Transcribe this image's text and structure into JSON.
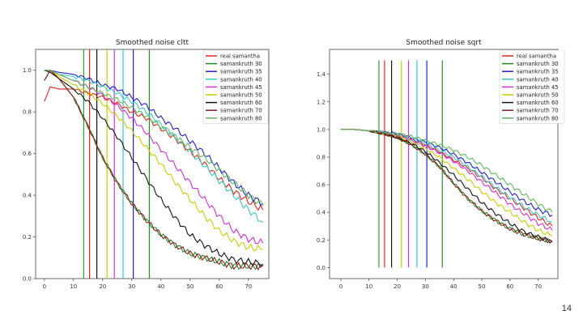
{
  "slide": {
    "page_number": "14"
  },
  "chart_data": [
    {
      "type": "line",
      "title": "Smoothed noise cltt",
      "xlabel": "",
      "ylabel": "",
      "xlim": [
        -3,
        77
      ],
      "ylim": [
        0,
        1.1
      ],
      "xticks": [
        0,
        10,
        20,
        30,
        40,
        50,
        60,
        70
      ],
      "yticks": [
        0.0,
        0.2,
        0.4,
        0.6,
        0.8,
        1.0
      ],
      "grid": false,
      "legend_position": "top-right",
      "vlines": [
        {
          "x": 13.5,
          "color": "#2ca02c"
        },
        {
          "x": 15.5,
          "color": "#e6261f"
        },
        {
          "x": 18.0,
          "color": "#111111"
        },
        {
          "x": 21.5,
          "color": "#cccc00"
        },
        {
          "x": 24.0,
          "color": "#d62fd6"
        },
        {
          "x": 27.0,
          "color": "#35c9cf"
        },
        {
          "x": 30.5,
          "color": "#2020d0"
        },
        {
          "x": 36.0,
          "color": "#1e9a1e"
        }
      ],
      "series": [
        {
          "name": "real samantha",
          "color": "#e6261f",
          "x": [
            0,
            2,
            5,
            10,
            15,
            20,
            25,
            30,
            35,
            40,
            45,
            50,
            55,
            60,
            65,
            70,
            75
          ],
          "y": [
            0.85,
            0.92,
            0.91,
            0.91,
            0.89,
            0.87,
            0.84,
            0.8,
            0.77,
            0.72,
            0.67,
            0.61,
            0.55,
            0.48,
            0.42,
            0.37,
            0.33
          ]
        },
        {
          "name": "samankruth 30",
          "color": "#1e8a1e",
          "x": [
            0,
            2,
            5,
            10,
            15,
            20,
            25,
            30,
            35,
            40,
            45,
            50,
            55,
            60,
            65,
            70,
            75
          ],
          "y": [
            0.95,
            1.0,
            0.96,
            0.87,
            0.73,
            0.58,
            0.46,
            0.36,
            0.28,
            0.21,
            0.16,
            0.12,
            0.1,
            0.08,
            0.06,
            0.06,
            0.06
          ]
        },
        {
          "name": "samankruth 35",
          "color": "#2020d0",
          "x": [
            0,
            2,
            5,
            10,
            15,
            20,
            25,
            30,
            35,
            40,
            45,
            50,
            55,
            60,
            65,
            70,
            75
          ],
          "y": [
            1.0,
            1.0,
            0.99,
            0.98,
            0.96,
            0.93,
            0.91,
            0.87,
            0.83,
            0.77,
            0.72,
            0.66,
            0.6,
            0.53,
            0.46,
            0.4,
            0.36
          ]
        },
        {
          "name": "samankruth 40",
          "color": "#35c9cf",
          "x": [
            0,
            2,
            5,
            10,
            15,
            20,
            25,
            30,
            35,
            40,
            45,
            50,
            55,
            60,
            65,
            70,
            75
          ],
          "y": [
            1.0,
            1.0,
            0.98,
            0.97,
            0.95,
            0.92,
            0.89,
            0.85,
            0.8,
            0.74,
            0.68,
            0.61,
            0.54,
            0.47,
            0.4,
            0.33,
            0.27
          ]
        },
        {
          "name": "samankruth 45",
          "color": "#d62fd6",
          "x": [
            0,
            2,
            5,
            10,
            15,
            20,
            25,
            30,
            35,
            40,
            45,
            50,
            55,
            60,
            65,
            70,
            75
          ],
          "y": [
            1.0,
            1.0,
            0.98,
            0.95,
            0.92,
            0.88,
            0.83,
            0.77,
            0.7,
            0.62,
            0.54,
            0.46,
            0.38,
            0.3,
            0.23,
            0.19,
            0.17
          ]
        },
        {
          "name": "samankruth 50",
          "color": "#cccc00",
          "x": [
            0,
            2,
            5,
            10,
            15,
            20,
            25,
            30,
            35,
            40,
            45,
            50,
            55,
            60,
            65,
            70,
            75
          ],
          "y": [
            1.0,
            1.0,
            0.97,
            0.93,
            0.89,
            0.84,
            0.78,
            0.71,
            0.63,
            0.55,
            0.46,
            0.38,
            0.3,
            0.23,
            0.18,
            0.15,
            0.14
          ]
        },
        {
          "name": "samankruth 60",
          "color": "#111111",
          "x": [
            0,
            2,
            5,
            10,
            15,
            20,
            25,
            30,
            35,
            40,
            45,
            50,
            55,
            60,
            65,
            70,
            75
          ],
          "y": [
            1.0,
            0.99,
            0.96,
            0.91,
            0.85,
            0.77,
            0.68,
            0.58,
            0.48,
            0.38,
            0.29,
            0.21,
            0.16,
            0.12,
            0.09,
            0.08,
            0.07
          ]
        },
        {
          "name": "samankruth 70",
          "color": "#8b1a1a",
          "x": [
            0,
            2,
            5,
            10,
            15,
            20,
            25,
            30,
            35,
            40,
            45,
            50,
            55,
            60,
            65,
            70,
            75
          ],
          "y": [
            0.95,
            1.0,
            0.96,
            0.87,
            0.73,
            0.58,
            0.46,
            0.36,
            0.28,
            0.21,
            0.16,
            0.12,
            0.1,
            0.08,
            0.06,
            0.06,
            0.06
          ]
        },
        {
          "name": "samankruth 80",
          "color": "#5fb85f",
          "x": [
            0,
            2,
            5,
            10,
            15,
            20,
            25,
            30,
            35,
            40,
            45,
            50,
            55,
            60,
            65,
            70,
            75
          ],
          "y": [
            1.0,
            1.0,
            0.98,
            0.95,
            0.92,
            0.89,
            0.86,
            0.82,
            0.78,
            0.73,
            0.68,
            0.63,
            0.58,
            0.52,
            0.46,
            0.4,
            0.35
          ]
        }
      ]
    },
    {
      "type": "line",
      "title": "Smoothed noise sqrt",
      "xlabel": "",
      "ylabel": "",
      "xlim": [
        -4,
        77
      ],
      "ylim": [
        -0.08,
        1.58
      ],
      "xticks": [
        0,
        10,
        20,
        30,
        40,
        50,
        60,
        70
      ],
      "yticks": [
        0.0,
        0.2,
        0.4,
        0.6,
        0.8,
        1.0,
        1.2,
        1.4
      ],
      "grid": false,
      "legend_position": "top-right",
      "vlines": [
        {
          "x": 13.5,
          "color": "#2ca02c"
        },
        {
          "x": 15.5,
          "color": "#e6261f"
        },
        {
          "x": 18.0,
          "color": "#111111"
        },
        {
          "x": 21.5,
          "color": "#cccc00"
        },
        {
          "x": 24.0,
          "color": "#d62fd6"
        },
        {
          "x": 27.0,
          "color": "#35c9cf"
        },
        {
          "x": 30.5,
          "color": "#2020d0"
        },
        {
          "x": 36.0,
          "color": "#1e9a1e"
        }
      ],
      "vline_range": [
        0,
        1.5
      ],
      "series": [
        {
          "name": "real samantha",
          "color": "#e6261f",
          "x": [
            0,
            5,
            10,
            15,
            20,
            25,
            30,
            35,
            40,
            45,
            50,
            55,
            60,
            65,
            70,
            75
          ],
          "y": [
            1.0,
            1.0,
            0.99,
            0.98,
            0.96,
            0.93,
            0.89,
            0.84,
            0.78,
            0.72,
            0.65,
            0.57,
            0.5,
            0.43,
            0.36,
            0.3
          ]
        },
        {
          "name": "samankruth 30",
          "color": "#1e8a1e",
          "x": [
            0,
            5,
            10,
            15,
            20,
            25,
            30,
            35,
            40,
            45,
            50,
            55,
            60,
            65,
            70,
            75
          ],
          "y": [
            1.0,
            1.0,
            0.99,
            0.97,
            0.94,
            0.89,
            0.82,
            0.73,
            0.61,
            0.5,
            0.41,
            0.34,
            0.28,
            0.24,
            0.21,
            0.19
          ]
        },
        {
          "name": "samankruth 35",
          "color": "#2020d0",
          "x": [
            0,
            5,
            10,
            15,
            20,
            25,
            30,
            35,
            40,
            45,
            50,
            55,
            60,
            65,
            70,
            75
          ],
          "y": [
            1.0,
            1.0,
            0.99,
            0.98,
            0.97,
            0.94,
            0.91,
            0.87,
            0.82,
            0.76,
            0.69,
            0.62,
            0.55,
            0.48,
            0.42,
            0.38
          ]
        },
        {
          "name": "samankruth 40",
          "color": "#35c9cf",
          "x": [
            0,
            5,
            10,
            15,
            20,
            25,
            30,
            35,
            40,
            45,
            50,
            55,
            60,
            65,
            70,
            75
          ],
          "y": [
            1.0,
            1.0,
            0.99,
            0.98,
            0.96,
            0.93,
            0.9,
            0.85,
            0.8,
            0.73,
            0.66,
            0.58,
            0.51,
            0.44,
            0.38,
            0.33
          ]
        },
        {
          "name": "samankruth 45",
          "color": "#d62fd6",
          "x": [
            0,
            5,
            10,
            15,
            20,
            25,
            30,
            35,
            40,
            45,
            50,
            55,
            60,
            65,
            70,
            75
          ],
          "y": [
            1.0,
            1.0,
            0.99,
            0.97,
            0.95,
            0.92,
            0.88,
            0.83,
            0.77,
            0.7,
            0.62,
            0.54,
            0.46,
            0.39,
            0.32,
            0.27
          ]
        },
        {
          "name": "samankruth 50",
          "color": "#cccc00",
          "x": [
            0,
            5,
            10,
            15,
            20,
            25,
            30,
            35,
            40,
            45,
            50,
            55,
            60,
            65,
            70,
            75
          ],
          "y": [
            1.0,
            1.0,
            0.99,
            0.97,
            0.95,
            0.91,
            0.86,
            0.8,
            0.72,
            0.64,
            0.55,
            0.47,
            0.4,
            0.33,
            0.27,
            0.23
          ]
        },
        {
          "name": "samankruth 60",
          "color": "#111111",
          "x": [
            0,
            5,
            10,
            15,
            20,
            25,
            30,
            35,
            40,
            45,
            50,
            55,
            60,
            65,
            70,
            75
          ],
          "y": [
            1.0,
            1.0,
            0.99,
            0.97,
            0.94,
            0.9,
            0.84,
            0.76,
            0.67,
            0.57,
            0.47,
            0.39,
            0.32,
            0.26,
            0.22,
            0.19
          ]
        },
        {
          "name": "samankruth 70",
          "color": "#8b1a1a",
          "x": [
            0,
            5,
            10,
            15,
            20,
            25,
            30,
            35,
            40,
            45,
            50,
            55,
            60,
            65,
            70,
            75
          ],
          "y": [
            1.0,
            1.0,
            0.99,
            0.97,
            0.94,
            0.89,
            0.82,
            0.73,
            0.61,
            0.5,
            0.41,
            0.34,
            0.28,
            0.24,
            0.21,
            0.19
          ]
        },
        {
          "name": "samankruth 80",
          "color": "#5fb85f",
          "x": [
            0,
            5,
            10,
            15,
            20,
            25,
            30,
            35,
            40,
            45,
            50,
            55,
            60,
            65,
            70,
            75
          ],
          "y": [
            1.0,
            1.0,
            0.99,
            0.98,
            0.97,
            0.95,
            0.92,
            0.89,
            0.85,
            0.8,
            0.74,
            0.67,
            0.6,
            0.53,
            0.46,
            0.4
          ]
        }
      ]
    }
  ]
}
